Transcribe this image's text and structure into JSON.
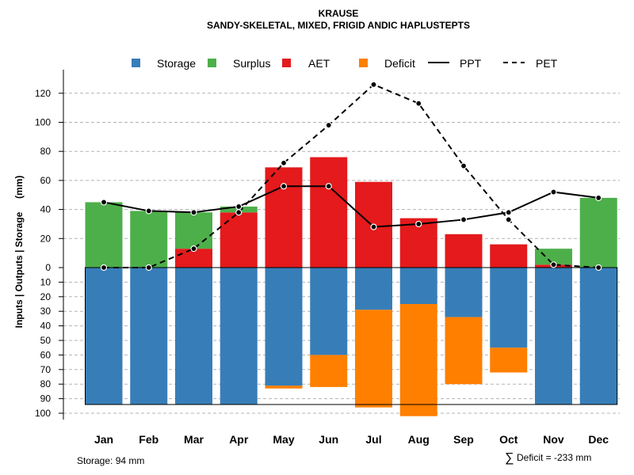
{
  "chart_data": {
    "type": "bar",
    "title": "KRAUSE",
    "subtitle": "SANDY-SKELETAL, MIXED, FRIGID ANDIC HAPLUSTEPTS",
    "ylabel": "Inputs | Outputs | Storage     (mm)",
    "categories": [
      "Jan",
      "Feb",
      "Mar",
      "Apr",
      "May",
      "Jun",
      "Jul",
      "Aug",
      "Sep",
      "Oct",
      "Nov",
      "Dec"
    ],
    "upper_ticks": [
      "0",
      "20",
      "40",
      "60",
      "80",
      "100",
      "120"
    ],
    "lower_ticks": [
      "10",
      "20",
      "30",
      "40",
      "50",
      "60",
      "70",
      "80",
      "90",
      "100"
    ],
    "ylim_upper": [
      0,
      130
    ],
    "ylim_lower": [
      0,
      100
    ],
    "storage_capacity": 94,
    "legend": {
      "storage": "Storage",
      "surplus": "Surplus",
      "aet": "AET",
      "deficit": "Deficit",
      "ppt": "PPT",
      "pet": "PET"
    },
    "colors": {
      "storage": "#377EB8",
      "surplus": "#4DAF4A",
      "aet": "#E41A1C",
      "deficit": "#FF7F00",
      "line": "#000000",
      "grid": "#b3b3b3"
    },
    "series": [
      {
        "name": "AET",
        "values": [
          0,
          0,
          13,
          38,
          69,
          76,
          59,
          34,
          23,
          16,
          2,
          0
        ]
      },
      {
        "name": "Surplus",
        "values": [
          45,
          39,
          25,
          4,
          0,
          0,
          0,
          0,
          0,
          0,
          11,
          48
        ]
      },
      {
        "name": "Storage",
        "values": [
          94,
          94,
          94,
          94,
          81,
          60,
          29,
          25,
          34,
          55,
          94,
          94
        ]
      },
      {
        "name": "Deficit",
        "values": [
          0,
          0,
          0,
          0,
          2,
          22,
          67,
          77,
          46,
          17,
          0,
          0
        ]
      },
      {
        "name": "PPT",
        "values": [
          45,
          39,
          38,
          42,
          56,
          56,
          28,
          30,
          33,
          38,
          52,
          48
        ]
      },
      {
        "name": "PET",
        "values": [
          0,
          0,
          13,
          38,
          72,
          98,
          126,
          113,
          70,
          33,
          2,
          0
        ]
      }
    ]
  },
  "footer": {
    "storage_note": "Storage: 94 mm",
    "deficit_symbol": "∑",
    "deficit_note": "Deficit = -233 mm"
  }
}
